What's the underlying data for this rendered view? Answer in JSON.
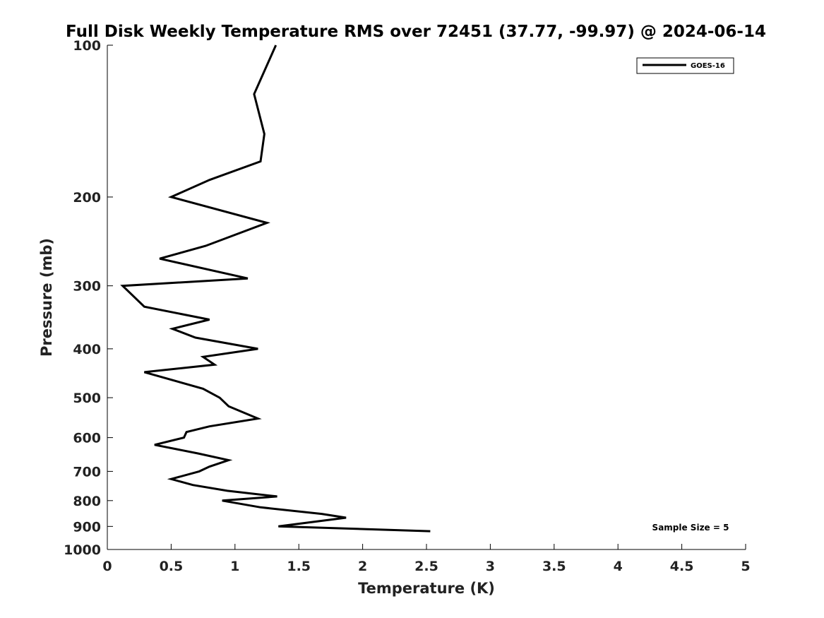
{
  "chart_data": {
    "type": "line",
    "title": "Full Disk Weekly Temperature RMS over 72451 (37.77, -99.97) @ 2024-06-14",
    "xlabel": "Temperature (K)",
    "ylabel": "Pressure (mb)",
    "xlim": [
      0,
      5
    ],
    "ylim": [
      1000,
      100
    ],
    "y_scale": "log",
    "x_ticks": [
      "0",
      "0.5",
      "1",
      "1.5",
      "2",
      "2.5",
      "3",
      "3.5",
      "4",
      "4.5",
      "5"
    ],
    "y_ticks": [
      "100",
      "200",
      "300",
      "400",
      "500",
      "600",
      "700",
      "800",
      "900",
      "1000"
    ],
    "grid": false,
    "legend_position": "top-right",
    "series": [
      {
        "name": "GOES-16",
        "color": "#000000",
        "x": [
          1.32,
          1.15,
          1.23,
          1.2,
          0.8,
          0.5,
          1.25,
          0.77,
          0.41,
          1.1,
          0.12,
          0.29,
          0.8,
          0.51,
          0.69,
          1.18,
          0.75,
          0.84,
          0.29,
          0.75,
          0.88,
          0.95,
          1.18,
          0.8,
          0.62,
          0.6,
          0.37,
          0.71,
          0.95,
          0.8,
          0.72,
          0.5,
          0.67,
          0.94,
          1.33,
          0.9,
          1.2,
          1.68,
          1.87,
          1.34,
          2.53
        ],
        "y": [
          100,
          125,
          150,
          170,
          185,
          200,
          225,
          250,
          265,
          290,
          300,
          330,
          350,
          365,
          380,
          400,
          415,
          430,
          445,
          480,
          500,
          520,
          550,
          570,
          585,
          600,
          620,
          645,
          665,
          685,
          700,
          725,
          745,
          765,
          785,
          800,
          825,
          850,
          865,
          900,
          920
        ]
      }
    ],
    "annotations": [
      "Sample Size = 5"
    ]
  }
}
